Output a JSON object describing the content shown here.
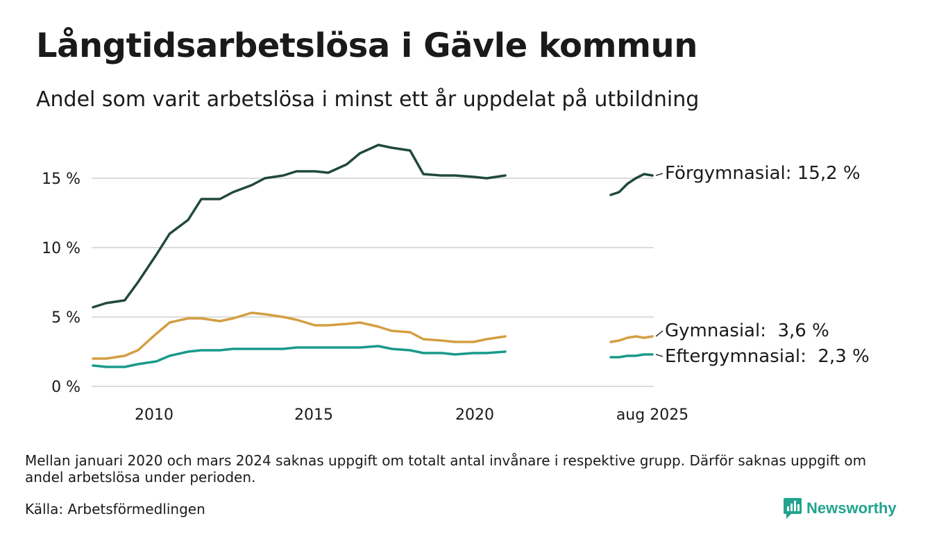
{
  "header": {
    "title": "Långtidsarbetslösa i Gävle kommun",
    "subtitle": "Andel som varit arbetslösa i minst ett år uppdelat på utbildning"
  },
  "footer": {
    "note": "Mellan januari 2020 och mars 2024 saknas uppgift om totalt antal invånare i respektive grupp. Därför saknas uppgift om andel arbetslösa under perioden.",
    "source": "Källa: Arbetsförmedlingen",
    "brand": "Newsworthy",
    "brand_color": "#21a38f",
    "brand_icon": "bar-chart-badge-icon"
  },
  "chart_data": {
    "type": "line",
    "title": "Långtidsarbetslösa i Gävle kommun",
    "subtitle": "Andel som varit arbetslösa i minst ett år uppdelat på utbildning",
    "xlabel": "",
    "ylabel": "",
    "ylim": [
      0,
      18
    ],
    "grid": true,
    "legend_placement": "direct labels at right end of lines",
    "y_ticks": [
      0,
      5,
      10,
      15
    ],
    "y_tick_labels": [
      "0 %",
      "5 %",
      "10 %",
      "15 %"
    ],
    "x_ticks": [
      "2010",
      "2015",
      "2020",
      "aug 2025"
    ],
    "axis_break": {
      "gap_start": "2021-01",
      "gap_end": "2024-05",
      "note": "x axis is broken; last segment covers 2024-05 to 2025-08"
    },
    "series": [
      {
        "name": "Förgymnasial",
        "end_label": "Förgymnasial: 15,2 %",
        "color": "#20483f",
        "segments": [
          {
            "x": [
              "2008-01",
              "2008-06",
              "2009-01",
              "2009-06",
              "2010-01",
              "2010-06",
              "2011-01",
              "2011-06",
              "2012-01",
              "2012-06",
              "2013-01",
              "2013-06",
              "2014-01",
              "2014-06",
              "2015-01",
              "2015-06",
              "2016-01",
              "2016-06",
              "2017-01",
              "2017-06",
              "2018-01",
              "2018-06",
              "2019-01",
              "2019-06",
              "2020-01",
              "2020-06",
              "2021-01"
            ],
            "values": [
              5.7,
              6.0,
              6.2,
              7.5,
              9.5,
              11.0,
              12.0,
              13.5,
              13.5,
              14.0,
              14.5,
              15.0,
              15.2,
              15.5,
              15.5,
              15.4,
              16.0,
              16.8,
              17.4,
              17.2,
              17.0,
              15.3,
              15.2,
              15.2,
              15.1,
              15.0,
              15.2
            ]
          },
          {
            "x": [
              "2024-05",
              "2024-08",
              "2024-11",
              "2025-02",
              "2025-05",
              "2025-08"
            ],
            "values": [
              13.8,
              14.0,
              14.6,
              15.0,
              15.3,
              15.2
            ]
          }
        ]
      },
      {
        "name": "Gymnasial",
        "end_label": "Gymnasial:  3,6 %",
        "color": "#d39e42",
        "segments": [
          {
            "x": [
              "2008-01",
              "2008-06",
              "2009-01",
              "2009-06",
              "2010-01",
              "2010-06",
              "2011-01",
              "2011-06",
              "2012-01",
              "2012-06",
              "2013-01",
              "2013-06",
              "2014-01",
              "2014-06",
              "2015-01",
              "2015-06",
              "2016-01",
              "2016-06",
              "2017-01",
              "2017-06",
              "2018-01",
              "2018-06",
              "2019-01",
              "2019-06",
              "2020-01",
              "2020-06",
              "2021-01"
            ],
            "values": [
              2.0,
              2.0,
              2.2,
              2.6,
              3.8,
              4.6,
              4.9,
              4.9,
              4.7,
              4.9,
              5.3,
              5.2,
              5.0,
              4.8,
              4.4,
              4.4,
              4.5,
              4.6,
              4.3,
              4.0,
              3.9,
              3.4,
              3.3,
              3.2,
              3.2,
              3.4,
              3.6
            ]
          },
          {
            "x": [
              "2024-05",
              "2024-08",
              "2024-11",
              "2025-02",
              "2025-05",
              "2025-08"
            ],
            "values": [
              3.2,
              3.3,
              3.5,
              3.6,
              3.5,
              3.6
            ]
          }
        ]
      },
      {
        "name": "Eftergymnasial",
        "end_label": "Eftergymnasial:  2,3 %",
        "color": "#199a8a",
        "segments": [
          {
            "x": [
              "2008-01",
              "2008-06",
              "2009-01",
              "2009-06",
              "2010-01",
              "2010-06",
              "2011-01",
              "2011-06",
              "2012-01",
              "2012-06",
              "2013-01",
              "2013-06",
              "2014-01",
              "2014-06",
              "2015-01",
              "2015-06",
              "2016-01",
              "2016-06",
              "2017-01",
              "2017-06",
              "2018-01",
              "2018-06",
              "2019-01",
              "2019-06",
              "2020-01",
              "2020-06",
              "2021-01"
            ],
            "values": [
              1.5,
              1.4,
              1.4,
              1.6,
              1.8,
              2.2,
              2.5,
              2.6,
              2.6,
              2.7,
              2.7,
              2.7,
              2.7,
              2.8,
              2.8,
              2.8,
              2.8,
              2.8,
              2.9,
              2.7,
              2.6,
              2.4,
              2.4,
              2.3,
              2.4,
              2.4,
              2.5
            ]
          },
          {
            "x": [
              "2024-05",
              "2024-08",
              "2024-11",
              "2025-02",
              "2025-05",
              "2025-08"
            ],
            "values": [
              2.1,
              2.1,
              2.2,
              2.2,
              2.3,
              2.3
            ]
          }
        ]
      }
    ]
  }
}
